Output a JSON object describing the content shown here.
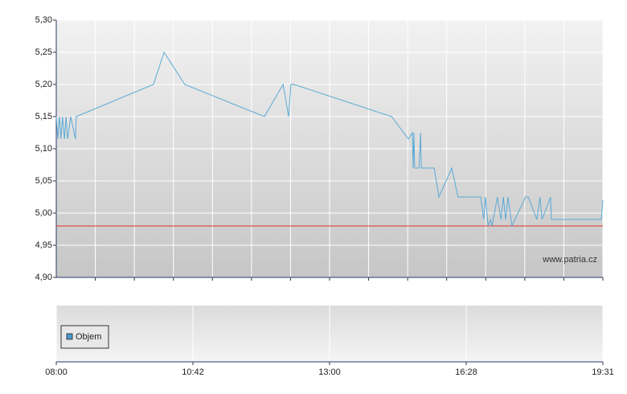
{
  "chart_data": {
    "type": "line",
    "x": [
      0,
      0.04,
      0.08,
      0.12,
      0.16,
      0.21,
      0.25,
      0.29,
      0.37,
      0.49,
      0.51,
      2.49,
      2.76,
      3.29,
      5.33,
      5.81,
      5.95,
      6.01,
      6.09,
      8.59,
      9.02,
      9.12,
      9.14,
      9.16,
      9.18,
      9.29,
      9.33,
      9.35,
      9.68,
      9.8,
      10.13,
      10.29,
      10.87,
      10.95,
      10.99,
      11.06,
      11.12,
      11.16,
      11.3,
      11.39,
      11.45,
      11.51,
      11.57,
      11.67,
      12.02,
      12.09,
      12.31,
      12.39,
      12.44,
      12.66,
      12.68,
      13.81,
      13.96,
      14
    ],
    "series": [
      {
        "color": "#5aaad6",
        "values": [
          5.15,
          5.115,
          5.15,
          5.115,
          5.15,
          5.115,
          5.15,
          5.115,
          5.15,
          5.115,
          5.15,
          5.2,
          5.25,
          5.2,
          5.15,
          5.2,
          5.15,
          5.2,
          5.2,
          5.15,
          5.115,
          5.125,
          5.07,
          5.125,
          5.07,
          5.07,
          5.125,
          5.07,
          5.07,
          5.025,
          5.07,
          5.025,
          5.025,
          4.99,
          5.025,
          4.98,
          4.99,
          4.98,
          5.025,
          4.99,
          5.025,
          4.99,
          5.025,
          4.98,
          5.025,
          5.025,
          4.99,
          5.025,
          4.99,
          5.025,
          4.99,
          4.99,
          4.99,
          5.02
        ]
      }
    ],
    "reference_line": {
      "value": 4.98,
      "color": "#e03030"
    },
    "ylim": [
      4.9,
      5.3
    ],
    "yticks": [
      {
        "value": 4.9,
        "label": "4,90"
      },
      {
        "value": 4.95,
        "label": "4,95"
      },
      {
        "value": 5.0,
        "label": "5,00"
      },
      {
        "value": 5.05,
        "label": "5,05"
      },
      {
        "value": 5.1,
        "label": "5,10"
      },
      {
        "value": 5.15,
        "label": "5,15"
      },
      {
        "value": 5.2,
        "label": "5,20"
      },
      {
        "value": 5.25,
        "label": "5,25"
      },
      {
        "value": 5.3,
        "label": "5,30"
      }
    ],
    "xlim": [
      0,
      14
    ],
    "xgrid": [
      1,
      2,
      3,
      4,
      5,
      6,
      7,
      8,
      9,
      10,
      11,
      12,
      13,
      14
    ],
    "xticks": [
      {
        "value": 0,
        "label": "08:00"
      },
      {
        "value": 3.5,
        "label": "10:42"
      },
      {
        "value": 7,
        "label": "13:00"
      },
      {
        "value": 10.5,
        "label": "16:28"
      },
      {
        "value": 14,
        "label": "19:31"
      }
    ],
    "watermark": "www.patria.cz",
    "volume_legend": {
      "name": "Objem",
      "color": "#4a9ad0"
    }
  }
}
